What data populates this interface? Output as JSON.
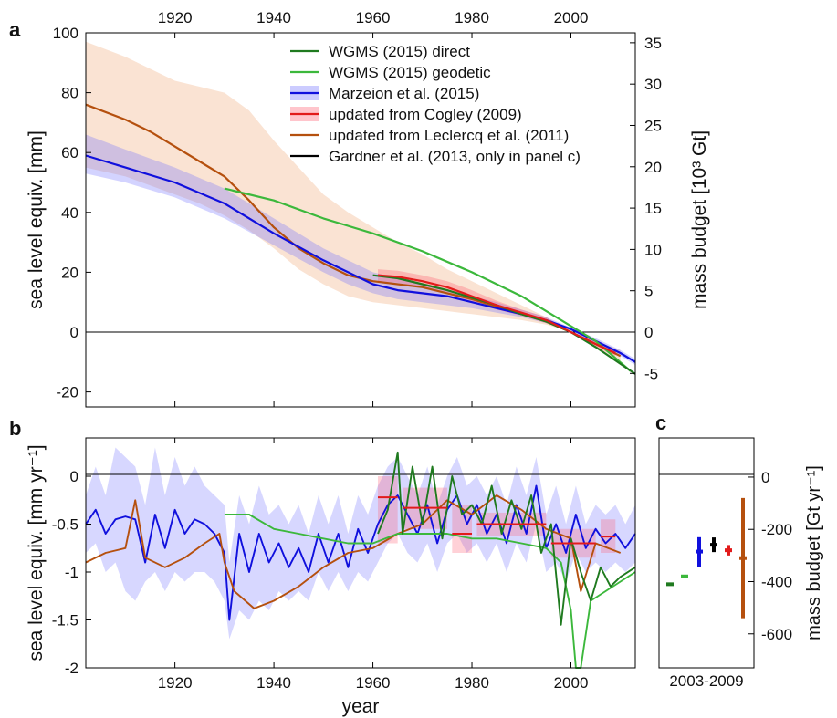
{
  "panel_labels": {
    "a": "a",
    "b": "b",
    "c": "c"
  },
  "legend": [
    {
      "label": "WGMS (2015) direct",
      "color": "#1f7a1f"
    },
    {
      "label": "WGMS (2015) geodetic",
      "color": "#3cb83c"
    },
    {
      "label": "Marzeion et al. (2015)",
      "color": "#1010dd"
    },
    {
      "label": "updated from Cogley (2009)",
      "color": "#e21b1b"
    },
    {
      "label": "updated from Leclercq et al. (2011)",
      "color": "#b5500e"
    },
    {
      "label": "Gardner et al. (2013, only in panel c)",
      "color": "#000000"
    }
  ],
  "chart_data": [
    {
      "panel": "a",
      "type": "line",
      "ylabel": "sea level equiv. [mm]",
      "y2label": "mass budget [10³ Gt]",
      "xlim": [
        1902,
        2013
      ],
      "ylim": [
        -25,
        100
      ],
      "x_ticks": [
        "1920",
        "1940",
        "1960",
        "1980",
        "2000"
      ],
      "y_ticks": [
        "-20",
        "0",
        "20",
        "40",
        "60",
        "80",
        "100"
      ],
      "y2_ticks": [
        "-5",
        "0",
        "5",
        "10",
        "15",
        "20",
        "25",
        "30",
        "35"
      ],
      "series": [
        {
          "name": "updated from Leclercq et al. (2011)",
          "color": "#b5500e",
          "x": [
            1902,
            1910,
            1915,
            1920,
            1925,
            1930,
            1935,
            1940,
            1945,
            1950,
            1955,
            1960,
            1965,
            1970,
            1975,
            1980,
            1985,
            1990,
            1995,
            2000,
            2005,
            2010
          ],
          "y": [
            76,
            71,
            67,
            62,
            57,
            52,
            44,
            35,
            28,
            23,
            19,
            17,
            16,
            15,
            13,
            11,
            8.5,
            6,
            3.5,
            0,
            -4,
            -8
          ],
          "band_low": [
            55,
            52,
            49,
            46,
            43,
            39,
            34,
            28,
            21,
            16,
            12,
            10,
            9,
            8,
            7,
            6,
            5,
            4,
            2.5,
            0,
            -5,
            -11
          ],
          "band_high": [
            97,
            92,
            88,
            84,
            82,
            80,
            74,
            64,
            55,
            46,
            40,
            35,
            30,
            26,
            21,
            17,
            13,
            9,
            5,
            0,
            -3,
            -6
          ]
        },
        {
          "name": "Marzeion et al. (2015)",
          "color": "#1010dd",
          "x": [
            1902,
            1910,
            1920,
            1930,
            1940,
            1950,
            1955,
            1960,
            1965,
            1970,
            1975,
            1980,
            1985,
            1990,
            1995,
            2000,
            2005,
            2010,
            2013
          ],
          "y": [
            59,
            55,
            50,
            43,
            33,
            24,
            20,
            16,
            14,
            13,
            12,
            10,
            8,
            6,
            4,
            1,
            -3,
            -7,
            -10
          ],
          "band_low": [
            53,
            50,
            45,
            38,
            29,
            20,
            16,
            13,
            11,
            10,
            9,
            8,
            6.5,
            5,
            3,
            0.5,
            -4,
            -8,
            -11
          ],
          "band_high": [
            66,
            61,
            55,
            48,
            38,
            28,
            24,
            20,
            18,
            16,
            14,
            12,
            10,
            7.5,
            5,
            1.5,
            -2,
            -6,
            -9
          ]
        },
        {
          "name": "WGMS (2015) geodetic",
          "color": "#3cb83c",
          "x": [
            1930,
            1940,
            1950,
            1960,
            1970,
            1980,
            1990,
            2000,
            2005,
            2012
          ],
          "y": [
            48,
            44,
            38,
            33,
            27,
            20,
            12,
            2,
            -3,
            -13
          ]
        },
        {
          "name": "WGMS (2015) direct",
          "color": "#1f7a1f",
          "x": [
            1960,
            1965,
            1970,
            1975,
            1980,
            1985,
            1990,
            1995,
            2000,
            2005,
            2013
          ],
          "y": [
            19,
            18,
            16,
            14,
            11.5,
            9,
            6,
            3.5,
            0,
            -5,
            -14
          ]
        },
        {
          "name": "updated from Cogley (2009)",
          "color": "#e21b1b",
          "x": [
            1961,
            1965,
            1970,
            1975,
            1980,
            1985,
            1990,
            1995,
            2000,
            2005,
            2009
          ],
          "y": [
            19,
            18.5,
            17,
            15,
            12,
            9,
            6.5,
            4,
            0,
            -4,
            -7
          ],
          "band_low": [
            17,
            16.5,
            15,
            13,
            10,
            7.5,
            5.5,
            3,
            0,
            -5,
            -8
          ],
          "band_high": [
            21,
            20.5,
            19,
            17,
            14,
            10.5,
            7.5,
            5,
            0,
            -3,
            -6
          ]
        }
      ]
    },
    {
      "panel": "b",
      "type": "line",
      "xlabel": "year",
      "ylabel": "sea level equiv. [mm yr⁻¹]",
      "xlim": [
        1902,
        2013
      ],
      "ylim": [
        -2,
        0.4
      ],
      "x_ticks": [
        "1920",
        "1940",
        "1960",
        "1980",
        "2000"
      ],
      "y_ticks": [
        "-2",
        "-1.5",
        "-1",
        "-0.5",
        "0"
      ],
      "series": [
        {
          "name": "Marzeion et al. (2015)",
          "color": "#1010dd",
          "x": [
            1902,
            1904,
            1906,
            1908,
            1910,
            1912,
            1914,
            1916,
            1918,
            1920,
            1922,
            1924,
            1926,
            1928,
            1930,
            1931,
            1933,
            1935,
            1937,
            1939,
            1941,
            1943,
            1945,
            1947,
            1949,
            1951,
            1953,
            1955,
            1957,
            1959,
            1961,
            1963,
            1965,
            1967,
            1969,
            1971,
            1973,
            1975,
            1977,
            1979,
            1981,
            1983,
            1985,
            1987,
            1989,
            1991,
            1993,
            1995,
            1997,
            1999,
            2001,
            2003,
            2005,
            2007,
            2009,
            2011,
            2013
          ],
          "y": [
            -0.5,
            -0.35,
            -0.6,
            -0.45,
            -0.42,
            -0.45,
            -0.9,
            -0.4,
            -0.75,
            -0.35,
            -0.6,
            -0.45,
            -0.5,
            -0.6,
            -0.8,
            -1.5,
            -0.6,
            -1.0,
            -0.6,
            -0.9,
            -0.7,
            -0.95,
            -0.75,
            -1.0,
            -0.6,
            -0.9,
            -0.6,
            -0.95,
            -0.55,
            -0.8,
            -0.5,
            -0.3,
            -0.2,
            -0.4,
            -0.6,
            -0.3,
            -0.7,
            -0.35,
            -0.2,
            -0.5,
            -0.3,
            -0.6,
            -0.4,
            -0.7,
            -0.3,
            -0.6,
            -0.1,
            -0.75,
            -0.5,
            -0.8,
            -0.4,
            -0.75,
            -0.55,
            -0.7,
            -0.6,
            -0.75,
            -0.6
          ],
          "band_low": [
            -0.8,
            -0.7,
            -1.0,
            -0.9,
            -1.2,
            -1.3,
            -1.1,
            -1.0,
            -1.2,
            -1.0,
            -1.1,
            -1.0,
            -1.0,
            -1.1,
            -1.3,
            -1.7,
            -1.4,
            -1.5,
            -1.3,
            -1.4,
            -1.2,
            -1.3,
            -1.2,
            -1.3,
            -1.0,
            -1.2,
            -1.0,
            -1.2,
            -1.0,
            -1.1,
            -0.9,
            -0.7,
            -0.6,
            -0.8,
            -0.9,
            -0.7,
            -1.0,
            -0.7,
            -0.6,
            -0.8,
            -0.7,
            -0.9,
            -0.7,
            -1.0,
            -0.7,
            -0.9,
            -0.5,
            -1.0,
            -0.9,
            -1.1,
            -0.8,
            -1.0,
            -0.9,
            -1.0,
            -0.9,
            -1.0,
            -0.9
          ],
          "band_high": [
            -0.2,
            0.1,
            -0.2,
            0.3,
            0.2,
            0.1,
            -0.3,
            0.3,
            -0.2,
            0.2,
            -0.1,
            0.1,
            -0.1,
            -0.2,
            -0.3,
            -0.9,
            -0.2,
            -0.5,
            -0.1,
            -0.4,
            -0.3,
            -0.5,
            -0.3,
            -0.6,
            -0.2,
            -0.5,
            -0.2,
            -0.6,
            -0.2,
            -0.4,
            -0.1,
            0.1,
            0.2,
            0.0,
            -0.2,
            0.1,
            -0.3,
            0.0,
            0.2,
            -0.1,
            0.0,
            -0.2,
            0.0,
            -0.3,
            0.1,
            -0.2,
            0.2,
            -0.4,
            -0.1,
            -0.5,
            -0.1,
            -0.5,
            -0.3,
            -0.4,
            -0.3,
            -0.5,
            -0.3
          ]
        },
        {
          "name": "updated from Leclercq et al. (2011)",
          "color": "#b5500e",
          "x": [
            1902,
            1906,
            1910,
            1912,
            1914,
            1918,
            1922,
            1926,
            1929,
            1930,
            1932,
            1936,
            1940,
            1945,
            1950,
            1955,
            1960,
            1965,
            1970,
            1975,
            1980,
            1985,
            1990,
            1995,
            2000,
            2002,
            2005,
            2010
          ],
          "y": [
            -0.9,
            -0.8,
            -0.75,
            -0.25,
            -0.85,
            -0.95,
            -0.85,
            -0.7,
            -0.6,
            -0.9,
            -1.2,
            -1.38,
            -1.3,
            -1.15,
            -0.95,
            -0.8,
            -0.75,
            -0.6,
            -0.5,
            -0.25,
            -0.4,
            -0.2,
            -0.35,
            -0.55,
            -0.65,
            -1.2,
            -0.7,
            -0.8
          ]
        },
        {
          "name": "WGMS (2015) geodetic",
          "color": "#3cb83c",
          "x": [
            1930,
            1935,
            1940,
            1945,
            1950,
            1955,
            1960,
            1965,
            1970,
            1975,
            1980,
            1985,
            1990,
            1995,
            1998,
            2000,
            2001,
            2002,
            2004,
            2007,
            2010,
            2013
          ],
          "y": [
            -0.4,
            -0.4,
            -0.55,
            -0.6,
            -0.65,
            -0.7,
            -0.7,
            -0.6,
            -0.6,
            -0.6,
            -0.65,
            -0.65,
            -0.7,
            -0.75,
            -0.9,
            -1.4,
            -2.0,
            -2.0,
            -1.3,
            -1.2,
            -1.1,
            -1.0
          ]
        },
        {
          "name": "WGMS (2015) direct",
          "color": "#1f7a1f",
          "x": [
            1961,
            1963,
            1965,
            1966,
            1968,
            1970,
            1972,
            1974,
            1976,
            1978,
            1980,
            1982,
            1984,
            1986,
            1988,
            1990,
            1992,
            1994,
            1996,
            1998,
            2000,
            2002,
            2004,
            2006,
            2008,
            2010,
            2013
          ],
          "y": [
            -0.6,
            -0.35,
            0.25,
            -0.6,
            0.1,
            -0.5,
            0.1,
            -0.65,
            0.0,
            -0.4,
            -0.3,
            -0.5,
            -0.1,
            -0.6,
            -0.25,
            -0.55,
            -0.2,
            -0.8,
            -0.5,
            -1.55,
            -0.65,
            -1.0,
            -1.3,
            -0.95,
            -1.15,
            -1.05,
            -0.95
          ]
        },
        {
          "name": "updated from Cogley (2009)",
          "color": "#e21b1b",
          "segments": [
            {
              "x0": 1961,
              "x1": 1965,
              "y": -0.22
            },
            {
              "x0": 1966,
              "x1": 1975,
              "y": -0.33
            },
            {
              "x0": 1976,
              "x1": 1980,
              "y": -0.6
            },
            {
              "x0": 1981,
              "x1": 1995,
              "y": -0.5
            },
            {
              "x0": 1996,
              "x1": 2005,
              "y": -0.7
            },
            {
              "x0": 2006,
              "x1": 2009,
              "y": -0.63
            }
          ],
          "boxes": [
            {
              "x0": 1961,
              "x1": 1965,
              "low": -0.7,
              "high": 0.0
            },
            {
              "x0": 1966,
              "x1": 1975,
              "low": -0.55,
              "high": -0.12
            },
            {
              "x0": 1976,
              "x1": 1980,
              "low": -0.8,
              "high": -0.3
            },
            {
              "x0": 1981,
              "x1": 1995,
              "low": -0.62,
              "high": -0.38
            },
            {
              "x0": 1996,
              "x1": 2005,
              "low": -0.85,
              "high": -0.55
            },
            {
              "x0": 2006,
              "x1": 2009,
              "low": -0.8,
              "high": -0.45
            }
          ]
        }
      ]
    },
    {
      "panel": "c",
      "type": "scatter",
      "xlabel": "2003-2009",
      "y2label": "mass budget [Gt yr⁻¹]",
      "ylim": [
        -730,
        150
      ],
      "y2_ticks": [
        "0",
        "-200",
        "-400",
        "-600"
      ],
      "points": [
        {
          "name": "WGMS (2015) direct",
          "color": "#1f7a1f",
          "value": -410,
          "low": -410,
          "high": -410
        },
        {
          "name": "WGMS (2015) geodetic",
          "color": "#3cb83c",
          "value": -380,
          "low": -380,
          "high": -380
        },
        {
          "name": "Marzeion et al. (2015)",
          "color": "#1010dd",
          "value": -285,
          "low": -345,
          "high": -230
        },
        {
          "name": "Gardner et al. (2013, only in panel c)",
          "color": "#000000",
          "value": -259,
          "low": -287,
          "high": -231
        },
        {
          "name": "updated from Cogley (2009)",
          "color": "#e21b1b",
          "value": -280,
          "low": -300,
          "high": -260
        },
        {
          "name": "updated from Leclercq et al. (2011)",
          "color": "#b5500e",
          "value": -310,
          "low": -540,
          "high": -80
        }
      ]
    }
  ]
}
